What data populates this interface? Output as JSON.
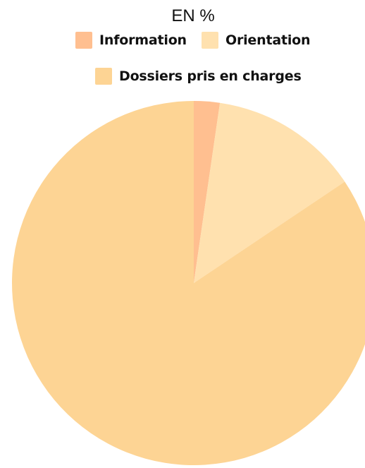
{
  "chart_data": {
    "type": "pie",
    "title": "EN %",
    "legend_position": "top",
    "categories": [
      "Information",
      "Orientation",
      "Dossiers pris en charges"
    ],
    "values": [
      2.3,
      13.3,
      84.4
    ],
    "colors": [
      "#FFBF90",
      "#FFE1AF",
      "#FDD494"
    ],
    "start_angle_deg": 0,
    "direction": "clockwise"
  }
}
